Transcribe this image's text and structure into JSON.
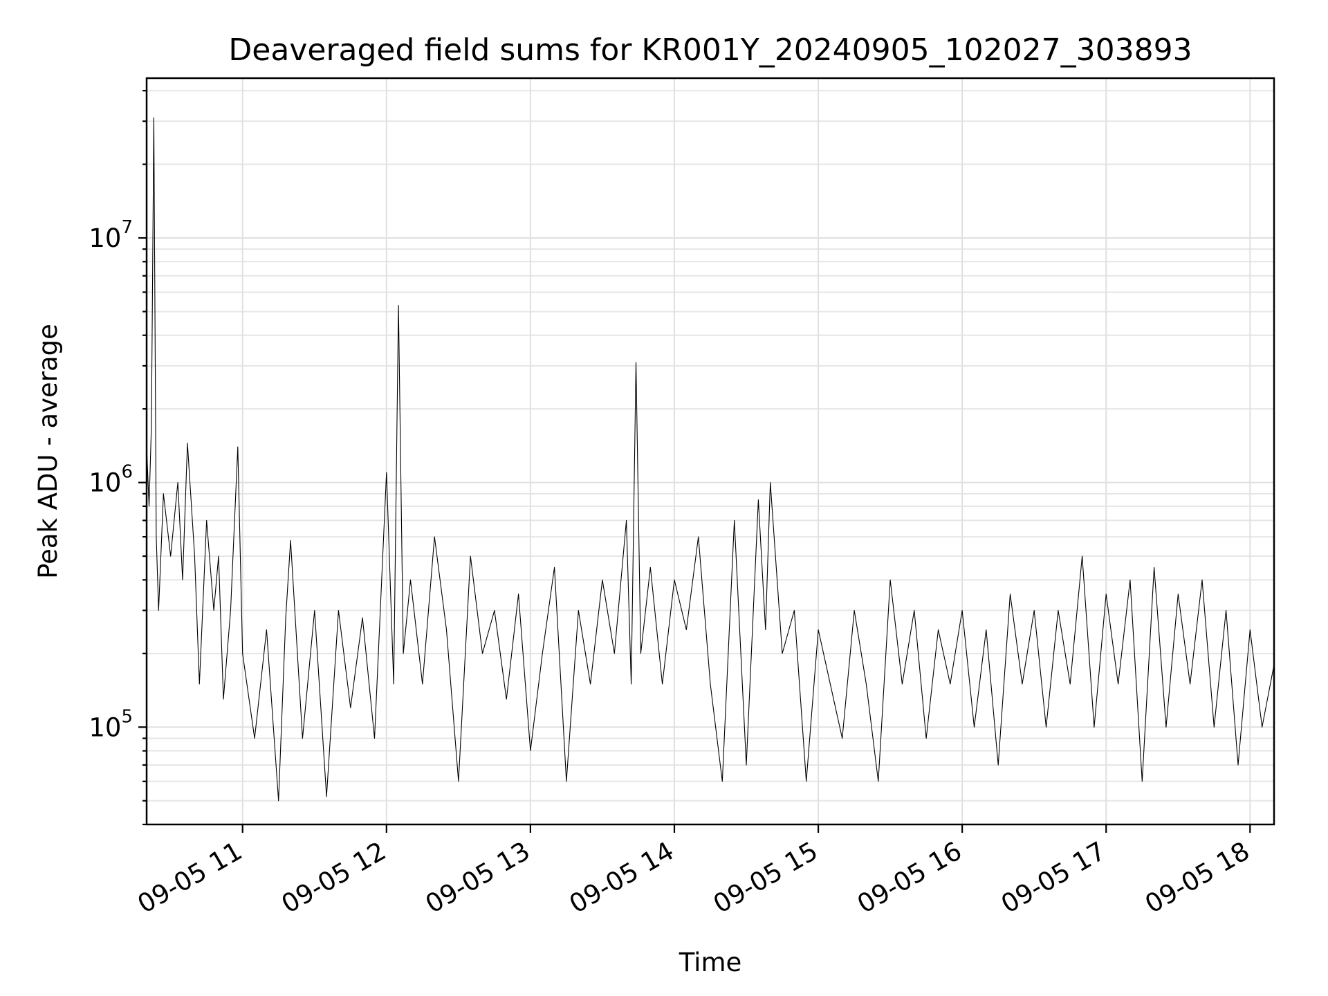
{
  "chart_data": {
    "type": "line",
    "title": "Deaveraged field sums for KR001Y_20240905_102027_303893",
    "xlabel": "Time",
    "ylabel": "Peak ADU - average",
    "yscale": "log",
    "ylim": [
      40000,
      45000000
    ],
    "xlim": [
      "09-05 10:20",
      "09-05 18:10"
    ],
    "grid": true,
    "legend": "none",
    "line_color": "#000000",
    "x_ticks": [
      "09-05 11",
      "09-05 12",
      "09-05 13",
      "09-05 14",
      "09-05 15",
      "09-05 16",
      "09-05 17",
      "09-05 18"
    ],
    "y_ticks": [
      {
        "base": "10",
        "exp": "5",
        "value": 100000
      },
      {
        "base": "10",
        "exp": "6",
        "value": 1000000
      },
      {
        "base": "10",
        "exp": "7",
        "value": 10000000
      }
    ],
    "series": [
      {
        "points": [
          [
            "09-05 10:20",
            1400000
          ],
          [
            "09-05 10:21",
            800000
          ],
          [
            "09-05 10:22",
            1700000
          ],
          [
            "09-05 10:23",
            31000000
          ],
          [
            "09-05 10:24",
            600000
          ],
          [
            "09-05 10:25",
            300000
          ],
          [
            "09-05 10:27",
            900000
          ],
          [
            "09-05 10:30",
            500000
          ],
          [
            "09-05 10:33",
            1000000
          ],
          [
            "09-05 10:35",
            400000
          ],
          [
            "09-05 10:37",
            1450000
          ],
          [
            "09-05 10:40",
            500000
          ],
          [
            "09-05 10:42",
            150000
          ],
          [
            "09-05 10:45",
            700000
          ],
          [
            "09-05 10:48",
            300000
          ],
          [
            "09-05 10:50",
            500000
          ],
          [
            "09-05 10:52",
            130000
          ],
          [
            "09-05 10:55",
            300000
          ],
          [
            "09-05 10:58",
            1400000
          ],
          [
            "09-05 11:00",
            200000
          ],
          [
            "09-05 11:05",
            90000
          ],
          [
            "09-05 11:10",
            250000
          ],
          [
            "09-05 11:15",
            50000
          ],
          [
            "09-05 11:18",
            280000
          ],
          [
            "09-05 11:20",
            580000
          ],
          [
            "09-05 11:25",
            90000
          ],
          [
            "09-05 11:30",
            300000
          ],
          [
            "09-05 11:35",
            52000
          ],
          [
            "09-05 11:40",
            300000
          ],
          [
            "09-05 11:45",
            120000
          ],
          [
            "09-05 11:50",
            280000
          ],
          [
            "09-05 11:55",
            90000
          ],
          [
            "09-05 12:00",
            1100000
          ],
          [
            "09-05 12:03",
            150000
          ],
          [
            "09-05 12:05",
            5300000
          ],
          [
            "09-05 12:07",
            200000
          ],
          [
            "09-05 12:10",
            400000
          ],
          [
            "09-05 12:15",
            150000
          ],
          [
            "09-05 12:20",
            600000
          ],
          [
            "09-05 12:25",
            250000
          ],
          [
            "09-05 12:30",
            60000
          ],
          [
            "09-05 12:35",
            500000
          ],
          [
            "09-05 12:40",
            200000
          ],
          [
            "09-05 12:45",
            300000
          ],
          [
            "09-05 12:50",
            130000
          ],
          [
            "09-05 12:55",
            350000
          ],
          [
            "09-05 13:00",
            80000
          ],
          [
            "09-05 13:05",
            200000
          ],
          [
            "09-05 13:10",
            450000
          ],
          [
            "09-05 13:15",
            60000
          ],
          [
            "09-05 13:20",
            300000
          ],
          [
            "09-05 13:25",
            150000
          ],
          [
            "09-05 13:30",
            400000
          ],
          [
            "09-05 13:35",
            200000
          ],
          [
            "09-05 13:40",
            700000
          ],
          [
            "09-05 13:42",
            150000
          ],
          [
            "09-05 13:44",
            3100000
          ],
          [
            "09-05 13:46",
            200000
          ],
          [
            "09-05 13:50",
            450000
          ],
          [
            "09-05 13:55",
            150000
          ],
          [
            "09-05 14:00",
            400000
          ],
          [
            "09-05 14:05",
            250000
          ],
          [
            "09-05 14:10",
            600000
          ],
          [
            "09-05 14:15",
            150000
          ],
          [
            "09-05 14:20",
            60000
          ],
          [
            "09-05 14:25",
            700000
          ],
          [
            "09-05 14:30",
            70000
          ],
          [
            "09-05 14:35",
            850000
          ],
          [
            "09-05 14:38",
            250000
          ],
          [
            "09-05 14:40",
            1000000
          ],
          [
            "09-05 14:45",
            200000
          ],
          [
            "09-05 14:50",
            300000
          ],
          [
            "09-05 14:55",
            60000
          ],
          [
            "09-05 15:00",
            250000
          ],
          [
            "09-05 15:05",
            150000
          ],
          [
            "09-05 15:10",
            90000
          ],
          [
            "09-05 15:15",
            300000
          ],
          [
            "09-05 15:20",
            150000
          ],
          [
            "09-05 15:25",
            60000
          ],
          [
            "09-05 15:30",
            400000
          ],
          [
            "09-05 15:35",
            150000
          ],
          [
            "09-05 15:40",
            300000
          ],
          [
            "09-05 15:45",
            90000
          ],
          [
            "09-05 15:50",
            250000
          ],
          [
            "09-05 15:55",
            150000
          ],
          [
            "09-05 16:00",
            300000
          ],
          [
            "09-05 16:05",
            100000
          ],
          [
            "09-05 16:10",
            250000
          ],
          [
            "09-05 16:15",
            70000
          ],
          [
            "09-05 16:20",
            350000
          ],
          [
            "09-05 16:25",
            150000
          ],
          [
            "09-05 16:30",
            300000
          ],
          [
            "09-05 16:35",
            100000
          ],
          [
            "09-05 16:40",
            300000
          ],
          [
            "09-05 16:45",
            150000
          ],
          [
            "09-05 16:50",
            500000
          ],
          [
            "09-05 16:55",
            100000
          ],
          [
            "09-05 17:00",
            350000
          ],
          [
            "09-05 17:05",
            150000
          ],
          [
            "09-05 17:10",
            400000
          ],
          [
            "09-05 17:15",
            60000
          ],
          [
            "09-05 17:20",
            450000
          ],
          [
            "09-05 17:25",
            100000
          ],
          [
            "09-05 17:30",
            350000
          ],
          [
            "09-05 17:35",
            150000
          ],
          [
            "09-05 17:40",
            400000
          ],
          [
            "09-05 17:45",
            100000
          ],
          [
            "09-05 17:50",
            300000
          ],
          [
            "09-05 17:55",
            70000
          ],
          [
            "09-05 18:00",
            250000
          ],
          [
            "09-05 18:05",
            100000
          ],
          [
            "09-05 18:10",
            180000
          ]
        ]
      }
    ]
  }
}
